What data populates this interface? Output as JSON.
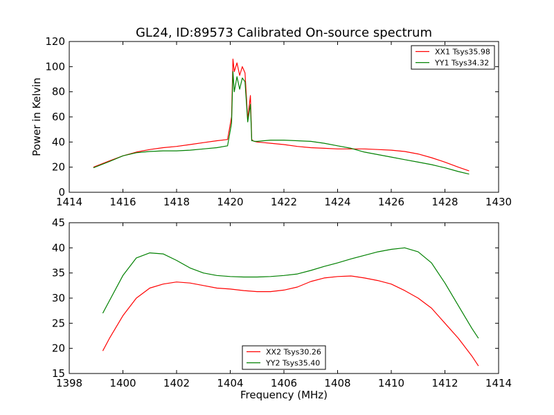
{
  "figure": {
    "title": "GL24, ID:89573 Calibrated On-source spectrum"
  },
  "chart_data": [
    {
      "type": "line",
      "title": "GL24, ID:89573 Calibrated On-source spectrum",
      "ylabel": "Power in Kelvin",
      "xlabel": "",
      "xlim": [
        1414,
        1430
      ],
      "ylim": [
        0,
        120
      ],
      "xticks": [
        1414,
        1416,
        1418,
        1420,
        1422,
        1424,
        1426,
        1428,
        1430
      ],
      "yticks": [
        0,
        20,
        40,
        60,
        80,
        100,
        120
      ],
      "legend_position": "top-right",
      "grid": false,
      "series": [
        {
          "name": "XX1 Tsys35.98",
          "color": "#ff0000",
          "x": [
            1414.9,
            1415.5,
            1416.0,
            1416.5,
            1417.0,
            1417.5,
            1418.0,
            1418.5,
            1419.0,
            1419.5,
            1419.9,
            1420.05,
            1420.1,
            1420.15,
            1420.25,
            1420.35,
            1420.45,
            1420.55,
            1420.65,
            1420.75,
            1420.8,
            1420.85,
            1420.9,
            1421.0,
            1421.5,
            1422.0,
            1422.5,
            1423.0,
            1423.5,
            1424.0,
            1424.5,
            1425.0,
            1425.5,
            1426.0,
            1426.5,
            1427.0,
            1427.5,
            1428.0,
            1428.5,
            1428.9
          ],
          "y": [
            20,
            25,
            29,
            32,
            34,
            35.5,
            36.5,
            38,
            39.5,
            41,
            42,
            60,
            106,
            96,
            103,
            93,
            100,
            95,
            58,
            77,
            42,
            41,
            40.5,
            40,
            39,
            38,
            36.5,
            35.5,
            35,
            34.5,
            34.5,
            34.5,
            34,
            33.5,
            32.5,
            30.5,
            27.5,
            24,
            20,
            17
          ]
        },
        {
          "name": "YY1 Tsys34.32",
          "color": "#008000",
          "x": [
            1414.9,
            1415.5,
            1416.0,
            1416.5,
            1417.0,
            1417.5,
            1418.0,
            1418.5,
            1419.0,
            1419.5,
            1419.9,
            1420.05,
            1420.1,
            1420.15,
            1420.25,
            1420.35,
            1420.45,
            1420.55,
            1420.65,
            1420.75,
            1420.8,
            1420.85,
            1420.9,
            1421.0,
            1421.5,
            1422.0,
            1422.5,
            1423.0,
            1423.5,
            1424.0,
            1424.5,
            1425.0,
            1425.5,
            1426.0,
            1426.5,
            1427.0,
            1427.5,
            1428.0,
            1428.5,
            1428.9
          ],
          "y": [
            19.5,
            24.5,
            29,
            31.5,
            32.5,
            33,
            33,
            33.5,
            34.5,
            35.5,
            37,
            55,
            96,
            80,
            92,
            82,
            91,
            88,
            56,
            70,
            41,
            41,
            40.5,
            40.5,
            41.5,
            41.5,
            41,
            40.5,
            39,
            37,
            35,
            32,
            30,
            28,
            26,
            24,
            22,
            19.5,
            16.5,
            14.5
          ]
        }
      ]
    },
    {
      "type": "line",
      "title": "",
      "xlabel": "Frequency (MHz)",
      "ylabel": "",
      "xlim": [
        1398,
        1414
      ],
      "ylim": [
        15,
        45
      ],
      "xticks": [
        1398,
        1400,
        1402,
        1404,
        1406,
        1408,
        1410,
        1412,
        1414
      ],
      "yticks": [
        15,
        20,
        25,
        30,
        35,
        40,
        45
      ],
      "legend_position": "lower-center",
      "grid": false,
      "series": [
        {
          "name": "XX2 Tsys30.26",
          "color": "#ff0000",
          "x": [
            1399.25,
            1399.5,
            1400.0,
            1400.5,
            1401.0,
            1401.5,
            1402.0,
            1402.5,
            1403.0,
            1403.5,
            1404.0,
            1404.5,
            1405.0,
            1405.5,
            1406.0,
            1406.5,
            1407.0,
            1407.5,
            1408.0,
            1408.5,
            1409.0,
            1409.5,
            1410.0,
            1410.5,
            1411.0,
            1411.5,
            1412.0,
            1412.5,
            1413.0,
            1413.25
          ],
          "y": [
            19.5,
            22,
            26.5,
            30,
            32,
            32.8,
            33.2,
            33,
            32.5,
            32,
            31.8,
            31.5,
            31.3,
            31.3,
            31.6,
            32.2,
            33.3,
            34,
            34.3,
            34.4,
            34,
            33.5,
            32.8,
            31.5,
            30,
            28,
            25,
            22,
            18.5,
            16.5
          ]
        },
        {
          "name": "YY2 Tsys35.40",
          "color": "#008000",
          "x": [
            1399.25,
            1399.5,
            1400.0,
            1400.5,
            1401.0,
            1401.5,
            1402.0,
            1402.5,
            1403.0,
            1403.5,
            1404.0,
            1404.5,
            1405.0,
            1405.5,
            1406.0,
            1406.5,
            1407.0,
            1407.5,
            1408.0,
            1408.5,
            1409.0,
            1409.5,
            1410.0,
            1410.5,
            1411.0,
            1411.5,
            1412.0,
            1412.5,
            1413.0,
            1413.25
          ],
          "y": [
            27,
            29.5,
            34.5,
            38,
            39,
            38.8,
            37.5,
            36,
            35,
            34.5,
            34.3,
            34.2,
            34.2,
            34.3,
            34.5,
            34.8,
            35.5,
            36.3,
            37,
            37.8,
            38.5,
            39.2,
            39.7,
            40,
            39.2,
            37,
            33,
            28.5,
            24,
            22
          ]
        }
      ]
    }
  ]
}
